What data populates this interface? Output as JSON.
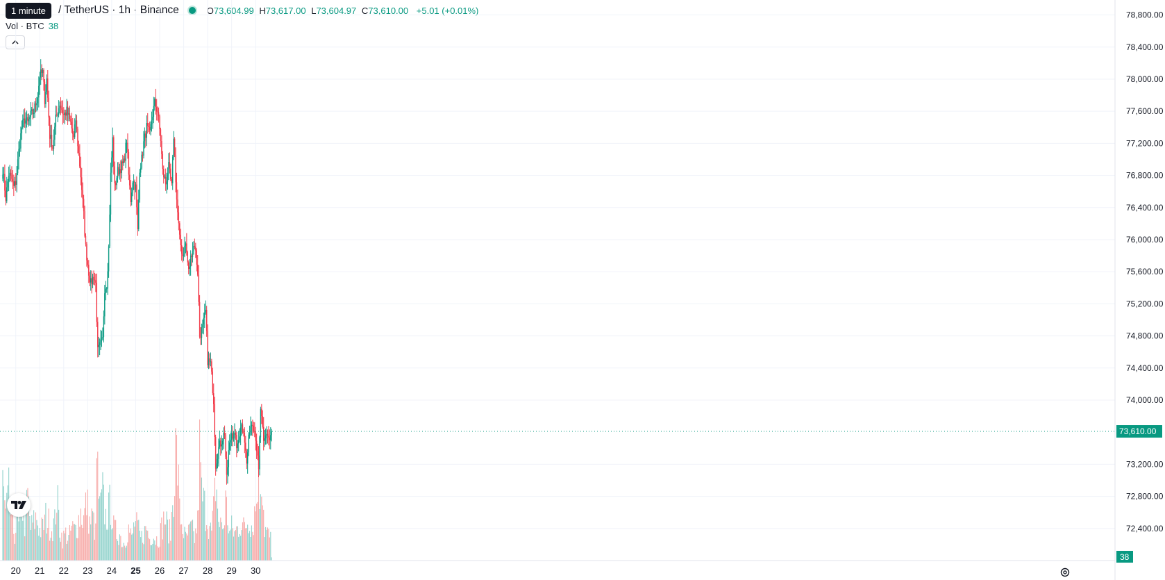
{
  "legend": {
    "tooltip": "1 minute",
    "symbol": "/ TetherUS · 1h · Binance",
    "open_label": "O",
    "open": "73,604.99",
    "high_label": "H",
    "high": "73,617.00",
    "low_label": "L",
    "low": "73,604.97",
    "close_label": "C",
    "close": "73,610.00",
    "change": "+5.01 (+0.01%)",
    "vol_label": "Vol · BTC",
    "vol_value": "38"
  },
  "price_axis": {
    "ticks": [
      "78,800.00",
      "78,400.00",
      "78,000.00",
      "77,600.00",
      "77,200.00",
      "76,800.00",
      "76,400.00",
      "76,000.00",
      "75,600.00",
      "75,200.00",
      "74,800.00",
      "74,400.00",
      "74,000.00",
      "73,200.00",
      "72,800.00",
      "72,400.00"
    ],
    "last_price_label": "73,610.00",
    "volume_label": "38"
  },
  "time_axis": {
    "ticks": [
      "20",
      "21",
      "22",
      "23",
      "24",
      "25",
      "26",
      "27",
      "28",
      "29",
      "30"
    ],
    "bold": "25"
  },
  "colors": {
    "up": "#089981",
    "down": "#f23645",
    "up_volume": "#92d2cc",
    "down_volume": "#f7a9a7",
    "grid": "#f0f3fa",
    "text": "#131722"
  },
  "icons": {
    "logo": "tradingview-logo-icon",
    "collapse": "chevron-up-icon",
    "settings": "gear-icon"
  },
  "chart_data": {
    "type": "candlestick",
    "timeframe": "1h",
    "ylim": [
      72000,
      78900
    ],
    "grid": true,
    "last_price": 73610,
    "anchors": [
      [
        0,
        76880
      ],
      [
        3,
        76520
      ],
      [
        6,
        76820
      ],
      [
        9,
        76750
      ],
      [
        11,
        76650
      ],
      [
        13,
        76720
      ],
      [
        16,
        77100
      ],
      [
        19,
        77400
      ],
      [
        22,
        77500
      ],
      [
        25,
        77450
      ],
      [
        28,
        77550
      ],
      [
        31,
        77600
      ],
      [
        35,
        77800
      ],
      [
        37,
        78050
      ],
      [
        40,
        78080
      ],
      [
        42,
        77750
      ],
      [
        44,
        78000
      ],
      [
        47,
        77300
      ],
      [
        50,
        77150
      ],
      [
        53,
        77500
      ],
      [
        57,
        77700
      ],
      [
        61,
        77550
      ],
      [
        64,
        77600
      ],
      [
        68,
        77450
      ],
      [
        71,
        77250
      ],
      [
        73,
        77500
      ],
      [
        75,
        77200
      ],
      [
        78,
        76800
      ],
      [
        81,
        76300
      ],
      [
        83,
        75900
      ],
      [
        86,
        75600
      ],
      [
        88,
        75450
      ],
      [
        91,
        75550
      ],
      [
        93,
        75450
      ],
      [
        95,
        74600
      ],
      [
        98,
        74700
      ],
      [
        100,
        74750
      ],
      [
        102,
        75400
      ],
      [
        104,
        75450
      ],
      [
        106,
        75900
      ],
      [
        108,
        76800
      ],
      [
        110,
        77250
      ],
      [
        112,
        76650
      ],
      [
        115,
        76850
      ],
      [
        118,
        76900
      ],
      [
        121,
        76950
      ],
      [
        124,
        77250
      ],
      [
        126,
        76800
      ],
      [
        128,
        76500
      ],
      [
        130,
        76750
      ],
      [
        133,
        76650
      ],
      [
        135,
        76100
      ],
      [
        137,
        76900
      ],
      [
        139,
        77000
      ],
      [
        141,
        77200
      ],
      [
        144,
        77400
      ],
      [
        147,
        77300
      ],
      [
        149,
        77500
      ],
      [
        152,
        77700
      ],
      [
        155,
        77600
      ],
      [
        158,
        77250
      ],
      [
        160,
        76850
      ],
      [
        163,
        76700
      ],
      [
        166,
        76900
      ],
      [
        169,
        76650
      ],
      [
        171,
        77300
      ],
      [
        174,
        76500
      ],
      [
        177,
        76000
      ],
      [
        180,
        75800
      ],
      [
        183,
        75950
      ],
      [
        186,
        75600
      ],
      [
        189,
        75850
      ],
      [
        192,
        75950
      ],
      [
        195,
        75600
      ],
      [
        197,
        74800
      ],
      [
        200,
        74900
      ],
      [
        203,
        75100
      ],
      [
        205,
        74500
      ],
      [
        208,
        74450
      ],
      [
        211,
        74000
      ],
      [
        213,
        73200
      ],
      [
        216,
        73400
      ],
      [
        219,
        73500
      ],
      [
        222,
        73600
      ],
      [
        224,
        73000
      ],
      [
        226,
        73350
      ],
      [
        229,
        73600
      ],
      [
        232,
        73550
      ],
      [
        235,
        73400
      ],
      [
        238,
        73700
      ],
      [
        241,
        73650
      ],
      [
        244,
        73200
      ],
      [
        247,
        73650
      ],
      [
        250,
        73750
      ],
      [
        253,
        73550
      ],
      [
        256,
        73100
      ],
      [
        258,
        73900
      ],
      [
        261,
        73450
      ],
      [
        264,
        73600
      ],
      [
        267,
        73500
      ],
      [
        269,
        73610
      ]
    ],
    "volume_anchors": [
      [
        0,
        70
      ],
      [
        3,
        40
      ],
      [
        6,
        60
      ],
      [
        9,
        35
      ],
      [
        12,
        25
      ],
      [
        15,
        40
      ],
      [
        16,
        30
      ],
      [
        19,
        55
      ],
      [
        22,
        35
      ],
      [
        25,
        60
      ],
      [
        28,
        30
      ],
      [
        31,
        35
      ],
      [
        34,
        40
      ],
      [
        37,
        28
      ],
      [
        40,
        30
      ],
      [
        43,
        40
      ],
      [
        46,
        35
      ],
      [
        49,
        30
      ],
      [
        52,
        35
      ],
      [
        54,
        60
      ],
      [
        57,
        30
      ],
      [
        60,
        20
      ],
      [
        63,
        25
      ],
      [
        66,
        20
      ],
      [
        69,
        30
      ],
      [
        72,
        28
      ],
      [
        75,
        35
      ],
      [
        78,
        45
      ],
      [
        81,
        38
      ],
      [
        84,
        55
      ],
      [
        87,
        35
      ],
      [
        90,
        40
      ],
      [
        93,
        25
      ],
      [
        94,
        95
      ],
      [
        97,
        45
      ],
      [
        100,
        60
      ],
      [
        103,
        40
      ],
      [
        106,
        45
      ],
      [
        108,
        55
      ],
      [
        111,
        30
      ],
      [
        114,
        25
      ],
      [
        117,
        25
      ],
      [
        120,
        15
      ],
      [
        123,
        20
      ],
      [
        126,
        30
      ],
      [
        129,
        20
      ],
      [
        132,
        35
      ],
      [
        135,
        30
      ],
      [
        138,
        20
      ],
      [
        141,
        25
      ],
      [
        144,
        30
      ],
      [
        147,
        20
      ],
      [
        150,
        25
      ],
      [
        153,
        20
      ],
      [
        156,
        20
      ],
      [
        159,
        30
      ],
      [
        162,
        40
      ],
      [
        165,
        30
      ],
      [
        168,
        25
      ],
      [
        171,
        70
      ],
      [
        173,
        100
      ],
      [
        175,
        90
      ],
      [
        177,
        45
      ],
      [
        180,
        30
      ],
      [
        183,
        20
      ],
      [
        186,
        25
      ],
      [
        189,
        30
      ],
      [
        192,
        20
      ],
      [
        195,
        35
      ],
      [
        197,
        100
      ],
      [
        199,
        60
      ],
      [
        202,
        50
      ],
      [
        205,
        40
      ],
      [
        207,
        30
      ],
      [
        209,
        25
      ],
      [
        211,
        45
      ],
      [
        213,
        75
      ],
      [
        215,
        50
      ],
      [
        217,
        30
      ],
      [
        219,
        35
      ],
      [
        221,
        30
      ],
      [
        223,
        55
      ],
      [
        225,
        40
      ],
      [
        227,
        25
      ],
      [
        229,
        30
      ],
      [
        232,
        25
      ],
      [
        235,
        30
      ],
      [
        238,
        35
      ],
      [
        241,
        30
      ],
      [
        244,
        35
      ],
      [
        247,
        40
      ],
      [
        250,
        30
      ],
      [
        252,
        45
      ],
      [
        254,
        55
      ],
      [
        255,
        85
      ],
      [
        257,
        60
      ],
      [
        259,
        90
      ],
      [
        262,
        30
      ],
      [
        265,
        25
      ],
      [
        268,
        20
      ],
      [
        269,
        3
      ]
    ],
    "candle_count": 270,
    "annotations": [
      "1 minute"
    ]
  }
}
